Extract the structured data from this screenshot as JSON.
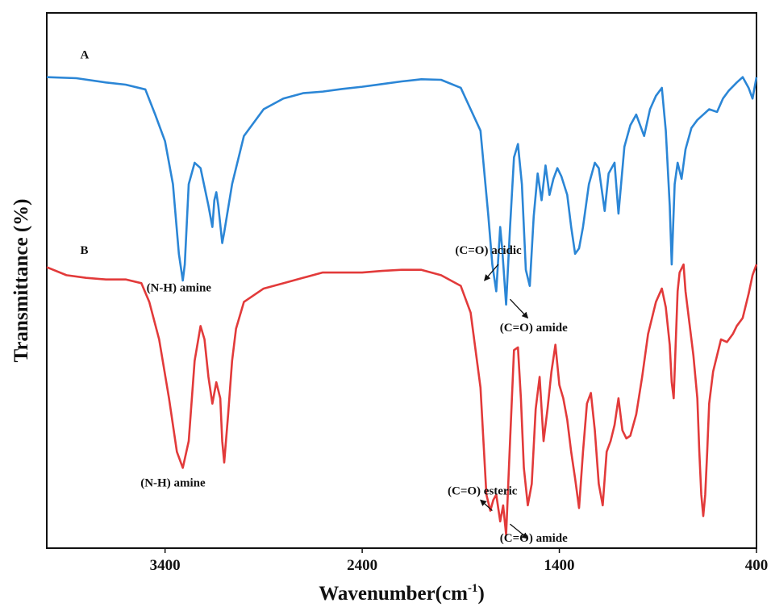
{
  "chart_data": {
    "type": "line",
    "xlabel": "Wavenumber(cm",
    "xlabel_sup": "-1",
    "xlabel_end": ")",
    "ylabel": "Transmittance (%)",
    "xlim": [
      4000,
      400
    ],
    "x_reversed": true,
    "ylim": [
      0,
      100
    ],
    "y_ticks_shown": false,
    "grid": false,
    "x_ticks": [
      3400,
      2400,
      1400,
      400
    ],
    "series": [
      {
        "name": "A",
        "color": "#2b86d6",
        "points": [
          [
            4000,
            88.0
          ],
          [
            3850,
            87.8
          ],
          [
            3700,
            87.0
          ],
          [
            3600,
            86.6
          ],
          [
            3500,
            85.7
          ],
          [
            3450,
            81.0
          ],
          [
            3400,
            76.0
          ],
          [
            3360,
            68.0
          ],
          [
            3330,
            55.0
          ],
          [
            3310,
            50.0
          ],
          [
            3300,
            53.0
          ],
          [
            3280,
            68.0
          ],
          [
            3250,
            72.0
          ],
          [
            3220,
            71.0
          ],
          [
            3180,
            64.0
          ],
          [
            3160,
            60.0
          ],
          [
            3150,
            65.0
          ],
          [
            3140,
            66.5
          ],
          [
            3130,
            64.0
          ],
          [
            3110,
            57.0
          ],
          [
            3100,
            59.0
          ],
          [
            3060,
            68.0
          ],
          [
            3000,
            77.0
          ],
          [
            2900,
            82.0
          ],
          [
            2800,
            84.0
          ],
          [
            2700,
            85.0
          ],
          [
            2600,
            85.3
          ],
          [
            2500,
            85.8
          ],
          [
            2400,
            86.2
          ],
          [
            2300,
            86.7
          ],
          [
            2200,
            87.2
          ],
          [
            2100,
            87.6
          ],
          [
            2000,
            87.5
          ],
          [
            1900,
            86.0
          ],
          [
            1800,
            78.0
          ],
          [
            1760,
            62.0
          ],
          [
            1740,
            53.0
          ],
          [
            1720,
            48.0
          ],
          [
            1700,
            60.0
          ],
          [
            1690,
            56.0
          ],
          [
            1670,
            45.5
          ],
          [
            1650,
            60.0
          ],
          [
            1630,
            73.0
          ],
          [
            1610,
            75.5
          ],
          [
            1590,
            68.0
          ],
          [
            1570,
            52.0
          ],
          [
            1550,
            49.0
          ],
          [
            1530,
            62.0
          ],
          [
            1510,
            70.0
          ],
          [
            1490,
            65.0
          ],
          [
            1470,
            71.5
          ],
          [
            1450,
            66.0
          ],
          [
            1430,
            69.0
          ],
          [
            1410,
            71.0
          ],
          [
            1390,
            69.5
          ],
          [
            1360,
            66.0
          ],
          [
            1340,
            60.0
          ],
          [
            1320,
            55.0
          ],
          [
            1300,
            56.0
          ],
          [
            1280,
            60.0
          ],
          [
            1250,
            68.0
          ],
          [
            1220,
            72.0
          ],
          [
            1200,
            71.0
          ],
          [
            1170,
            63.0
          ],
          [
            1150,
            70.0
          ],
          [
            1120,
            72.0
          ],
          [
            1100,
            62.5
          ],
          [
            1070,
            75.0
          ],
          [
            1040,
            79.0
          ],
          [
            1010,
            81.0
          ],
          [
            970,
            77.0
          ],
          [
            940,
            82.0
          ],
          [
            910,
            84.5
          ],
          [
            880,
            86.0
          ],
          [
            860,
            78.0
          ],
          [
            840,
            64.0
          ],
          [
            830,
            53.0
          ],
          [
            815,
            68.0
          ],
          [
            800,
            72.0
          ],
          [
            780,
            69.0
          ],
          [
            760,
            74.5
          ],
          [
            730,
            78.5
          ],
          [
            700,
            80.0
          ],
          [
            670,
            81.0
          ],
          [
            640,
            82.0
          ],
          [
            600,
            81.5
          ],
          [
            570,
            84.0
          ],
          [
            540,
            85.5
          ],
          [
            500,
            87.0
          ],
          [
            470,
            88.0
          ],
          [
            440,
            86.0
          ],
          [
            420,
            84.0
          ],
          [
            400,
            88.0
          ]
        ]
      },
      {
        "name": "B",
        "color": "#e23a3a",
        "points": [
          [
            4000,
            52.5
          ],
          [
            3900,
            51.0
          ],
          [
            3800,
            50.5
          ],
          [
            3700,
            50.2
          ],
          [
            3600,
            50.2
          ],
          [
            3520,
            49.5
          ],
          [
            3480,
            46.0
          ],
          [
            3430,
            39.0
          ],
          [
            3380,
            28.0
          ],
          [
            3340,
            18.0
          ],
          [
            3310,
            15.0
          ],
          [
            3280,
            20.0
          ],
          [
            3250,
            35.0
          ],
          [
            3220,
            41.5
          ],
          [
            3200,
            39.0
          ],
          [
            3180,
            32.0
          ],
          [
            3160,
            27.0
          ],
          [
            3140,
            31.0
          ],
          [
            3120,
            28.0
          ],
          [
            3110,
            20.0
          ],
          [
            3100,
            16.0
          ],
          [
            3080,
            25.0
          ],
          [
            3060,
            35.0
          ],
          [
            3040,
            41.0
          ],
          [
            3000,
            46.0
          ],
          [
            2900,
            48.5
          ],
          [
            2800,
            49.5
          ],
          [
            2700,
            50.5
          ],
          [
            2600,
            51.5
          ],
          [
            2500,
            51.5
          ],
          [
            2400,
            51.5
          ],
          [
            2300,
            51.8
          ],
          [
            2200,
            52.0
          ],
          [
            2100,
            52.0
          ],
          [
            2000,
            51.0
          ],
          [
            1900,
            49.0
          ],
          [
            1850,
            44.0
          ],
          [
            1800,
            30.0
          ],
          [
            1770,
            10.0
          ],
          [
            1750,
            7.0
          ],
          [
            1735,
            9.0
          ],
          [
            1720,
            10.0
          ],
          [
            1700,
            5.0
          ],
          [
            1685,
            8.0
          ],
          [
            1670,
            2.5
          ],
          [
            1650,
            20.0
          ],
          [
            1630,
            37.0
          ],
          [
            1610,
            37.5
          ],
          [
            1595,
            28.0
          ],
          [
            1580,
            15.0
          ],
          [
            1560,
            8.0
          ],
          [
            1540,
            12.0
          ],
          [
            1520,
            26.0
          ],
          [
            1500,
            32.0
          ],
          [
            1480,
            20.0
          ],
          [
            1460,
            26.0
          ],
          [
            1440,
            33.0
          ],
          [
            1420,
            38.0
          ],
          [
            1400,
            30.5
          ],
          [
            1380,
            28.0
          ],
          [
            1360,
            24.0
          ],
          [
            1340,
            18.0
          ],
          [
            1320,
            13.0
          ],
          [
            1300,
            7.5
          ],
          [
            1280,
            18.0
          ],
          [
            1260,
            27.0
          ],
          [
            1240,
            29.0
          ],
          [
            1220,
            22.0
          ],
          [
            1200,
            12.0
          ],
          [
            1180,
            8.0
          ],
          [
            1160,
            18.0
          ],
          [
            1140,
            20.0
          ],
          [
            1120,
            23.0
          ],
          [
            1100,
            28.0
          ],
          [
            1080,
            22.0
          ],
          [
            1060,
            20.5
          ],
          [
            1040,
            21.0
          ],
          [
            1010,
            25.0
          ],
          [
            980,
            32.0
          ],
          [
            950,
            40.0
          ],
          [
            910,
            46.0
          ],
          [
            880,
            48.5
          ],
          [
            860,
            45.0
          ],
          [
            840,
            38.0
          ],
          [
            830,
            31.0
          ],
          [
            820,
            28.0
          ],
          [
            800,
            48.0
          ],
          [
            790,
            51.5
          ],
          [
            770,
            53.0
          ],
          [
            760,
            48.0
          ],
          [
            740,
            42.0
          ],
          [
            720,
            36.0
          ],
          [
            700,
            28.0
          ],
          [
            690,
            18.0
          ],
          [
            680,
            10.0
          ],
          [
            670,
            6.0
          ],
          [
            660,
            10.0
          ],
          [
            650,
            18.0
          ],
          [
            640,
            27.0
          ],
          [
            620,
            33.0
          ],
          [
            600,
            36.0
          ],
          [
            580,
            39.0
          ],
          [
            550,
            38.5
          ],
          [
            520,
            40.0
          ],
          [
            500,
            41.5
          ],
          [
            470,
            43.0
          ],
          [
            440,
            47.5
          ],
          [
            420,
            51.0
          ],
          [
            400,
            53.0
          ]
        ]
      }
    ],
    "annotations": [
      {
        "text": "A",
        "kind": "series-tag",
        "x": 3830,
        "y": 91.5
      },
      {
        "text": "B",
        "kind": "series-tag",
        "x": 3830,
        "y": 55.0
      },
      {
        "text": "(N-H) amine",
        "kind": "label",
        "x": 3330,
        "y": 48.0
      },
      {
        "text": "(C=O) acidic",
        "kind": "label",
        "x": 1760,
        "y": 55.0,
        "arrow_from": [
          1710,
          53.0
        ],
        "arrow_to": [
          1780,
          50.0
        ]
      },
      {
        "text": "(C=O) amide",
        "kind": "label",
        "x": 1530,
        "y": 40.5,
        "arrow_from": [
          1650,
          46.5
        ],
        "arrow_to": [
          1560,
          43.0
        ]
      },
      {
        "text": "(N-H) amine",
        "kind": "label",
        "x": 3360,
        "y": 11.5
      },
      {
        "text": "(C=O) esteric",
        "kind": "label",
        "x": 1790,
        "y": 10.0,
        "arrow_from": [
          1740,
          7.0
        ],
        "arrow_to": [
          1800,
          9.0
        ]
      },
      {
        "text": "(C=O) amide",
        "kind": "label",
        "x": 1530,
        "y": 1.2,
        "arrow_from": [
          1650,
          4.5
        ],
        "arrow_to": [
          1560,
          1.8
        ]
      }
    ]
  }
}
